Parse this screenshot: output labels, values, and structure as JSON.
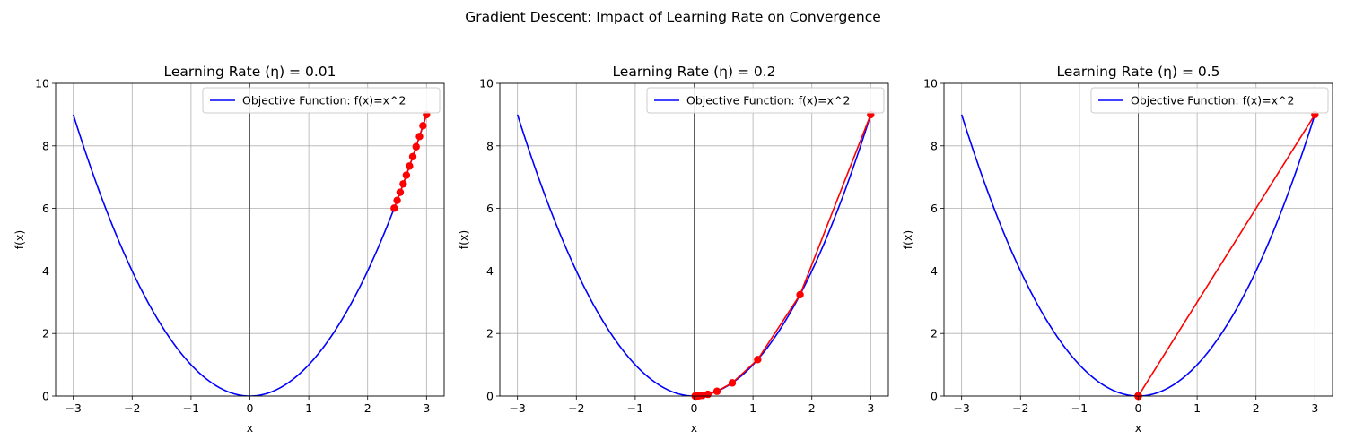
{
  "figure": {
    "suptitle": "Gradient Descent: Impact of Learning Rate on Convergence"
  },
  "chart_data": [
    {
      "type": "line",
      "title": "Learning Rate (η) = 0.01",
      "xlabel": "x",
      "ylabel": "f(x)",
      "xlim": [
        -3.3,
        3.3
      ],
      "ylim": [
        0,
        10
      ],
      "xticks": [
        -3,
        -2,
        -1,
        0,
        1,
        2,
        3
      ],
      "xtick_labels": [
        "−3",
        "−2",
        "−1",
        "0",
        "1",
        "2",
        "3"
      ],
      "yticks": [
        0,
        2,
        4,
        6,
        8,
        10
      ],
      "ytick_labels": [
        "0",
        "2",
        "4",
        "6",
        "8",
        "10"
      ],
      "grid": true,
      "legend_position": "top-right",
      "objective": {
        "name": "Objective Function: f(x)=x^2",
        "x_range": [
          -3,
          3
        ],
        "color": "#0000ff"
      },
      "path": {
        "color": "#ff0000",
        "x": [
          3.0,
          2.94,
          2.8812,
          2.8236,
          2.7671,
          2.7118,
          2.6575,
          2.6044,
          2.5523,
          2.5012,
          2.4512
        ],
        "y": [
          9.0,
          8.6436,
          8.3013,
          7.9727,
          7.657,
          7.3538,
          7.0625,
          6.7829,
          6.5142,
          6.2562,
          6.0084
        ]
      }
    },
    {
      "type": "line",
      "title": "Learning Rate (η) = 0.2",
      "xlabel": "x",
      "ylabel": "f(x)",
      "xlim": [
        -3.3,
        3.3
      ],
      "ylim": [
        0,
        10
      ],
      "xticks": [
        -3,
        -2,
        -1,
        0,
        1,
        2,
        3
      ],
      "xtick_labels": [
        "−3",
        "−2",
        "−1",
        "0",
        "1",
        "2",
        "3"
      ],
      "yticks": [
        0,
        2,
        4,
        6,
        8,
        10
      ],
      "ytick_labels": [
        "0",
        "2",
        "4",
        "6",
        "8",
        "10"
      ],
      "grid": true,
      "legend_position": "top-right",
      "objective": {
        "name": "Objective Function: f(x)=x^2",
        "x_range": [
          -3,
          3
        ],
        "color": "#0000ff"
      },
      "path": {
        "color": "#ff0000",
        "x": [
          3.0,
          1.8,
          1.08,
          0.648,
          0.3888,
          0.2333,
          0.14,
          0.084,
          0.0504,
          0.0302,
          0.0181
        ],
        "y": [
          9.0,
          3.24,
          1.1664,
          0.4199,
          0.1512,
          0.0544,
          0.0196,
          0.0071,
          0.0025,
          0.0009,
          0.0003
        ]
      }
    },
    {
      "type": "line",
      "title": "Learning Rate (η) = 0.5",
      "xlabel": "x",
      "ylabel": "f(x)",
      "xlim": [
        -3.3,
        3.3
      ],
      "ylim": [
        0,
        10
      ],
      "xticks": [
        -3,
        -2,
        -1,
        0,
        1,
        2,
        3
      ],
      "xtick_labels": [
        "−3",
        "−2",
        "−1",
        "0",
        "1",
        "2",
        "3"
      ],
      "yticks": [
        0,
        2,
        4,
        6,
        8,
        10
      ],
      "ytick_labels": [
        "0",
        "2",
        "4",
        "6",
        "8",
        "10"
      ],
      "grid": true,
      "legend_position": "top-right",
      "objective": {
        "name": "Objective Function: f(x)=x^2",
        "x_range": [
          -3,
          3
        ],
        "color": "#0000ff"
      },
      "path": {
        "color": "#ff0000",
        "x": [
          3.0,
          0.0,
          0.0,
          0.0,
          0.0,
          0.0,
          0.0,
          0.0,
          0.0,
          0.0,
          0.0
        ],
        "y": [
          9.0,
          0.0,
          0.0,
          0.0,
          0.0,
          0.0,
          0.0,
          0.0,
          0.0,
          0.0,
          0.0
        ]
      }
    }
  ]
}
